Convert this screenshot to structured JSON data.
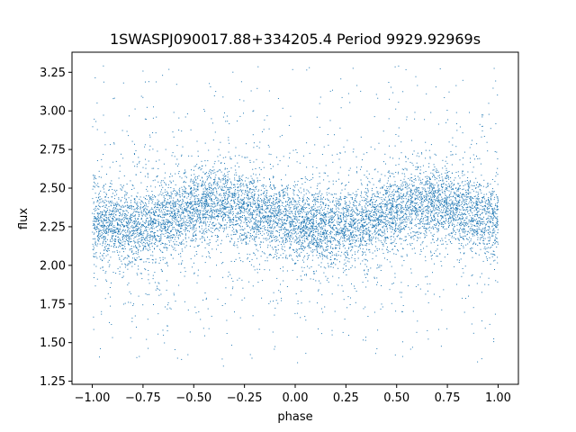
{
  "chart_data": {
    "type": "scatter",
    "title": "1SWASPJ090017.88+334205.4 Period 9929.92969s",
    "xlabel": "phase",
    "ylabel": "flux",
    "xlim": [
      -1.1,
      1.1
    ],
    "ylim": [
      1.23,
      3.38
    ],
    "x_ticks": [
      -1.0,
      -0.75,
      -0.5,
      -0.25,
      0.0,
      0.25,
      0.5,
      0.75,
      1.0
    ],
    "x_tick_labels": [
      "−1.00",
      "−0.75",
      "−0.50",
      "−0.25",
      "0.00",
      "0.25",
      "0.50",
      "0.75",
      "1.00"
    ],
    "y_ticks": [
      1.25,
      1.5,
      1.75,
      2.0,
      2.25,
      2.5,
      2.75,
      3.0,
      3.25
    ],
    "y_tick_labels": [
      "1.25",
      "1.50",
      "1.75",
      "2.00",
      "2.25",
      "2.50",
      "2.75",
      "3.00",
      "3.25"
    ],
    "grid": false,
    "point_color": "#1f77b4",
    "series": [
      {
        "x_range": [
          -1.0,
          1.0
        ],
        "trend_points": [
          [
            -1.0,
            2.28
          ],
          [
            -0.9,
            2.27
          ],
          [
            -0.8,
            2.25
          ],
          [
            -0.7,
            2.27
          ],
          [
            -0.6,
            2.32
          ],
          [
            -0.5,
            2.36
          ],
          [
            -0.4,
            2.4
          ],
          [
            -0.3,
            2.39
          ],
          [
            -0.2,
            2.35
          ],
          [
            -0.1,
            2.31
          ],
          [
            0.0,
            2.27
          ],
          [
            0.1,
            2.25
          ],
          [
            0.2,
            2.24
          ],
          [
            0.3,
            2.26
          ],
          [
            0.4,
            2.3
          ],
          [
            0.5,
            2.35
          ],
          [
            0.6,
            2.4
          ],
          [
            0.7,
            2.41
          ],
          [
            0.8,
            2.38
          ],
          [
            0.9,
            2.32
          ],
          [
            1.0,
            2.3
          ]
        ],
        "core_spread": 0.12,
        "outlier_range": [
          1.34,
          3.3
        ]
      }
    ]
  }
}
